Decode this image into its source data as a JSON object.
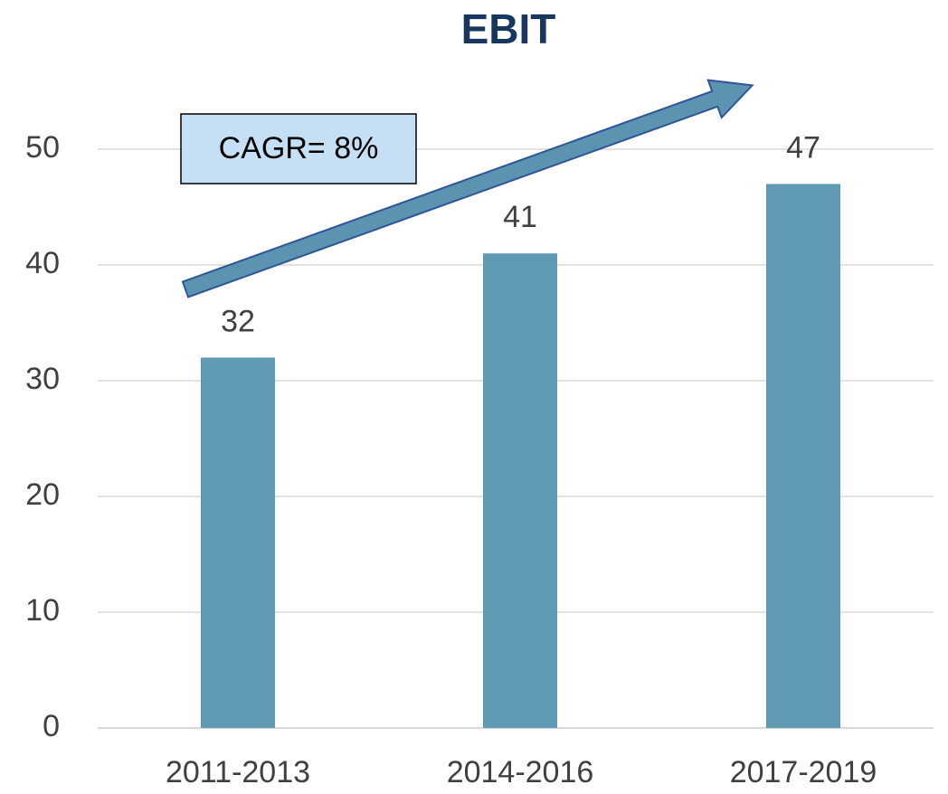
{
  "chart_data": {
    "type": "bar",
    "title": "EBIT",
    "categories": [
      "2011-2013",
      "2014-2016",
      "2017-2019"
    ],
    "values": [
      32,
      41,
      47
    ],
    "color": "#6099b4",
    "ylim": [
      0,
      55
    ],
    "yticks": [
      0,
      10,
      20,
      30,
      40,
      50
    ],
    "grid": true,
    "annotation": "CAGR= 8%"
  }
}
